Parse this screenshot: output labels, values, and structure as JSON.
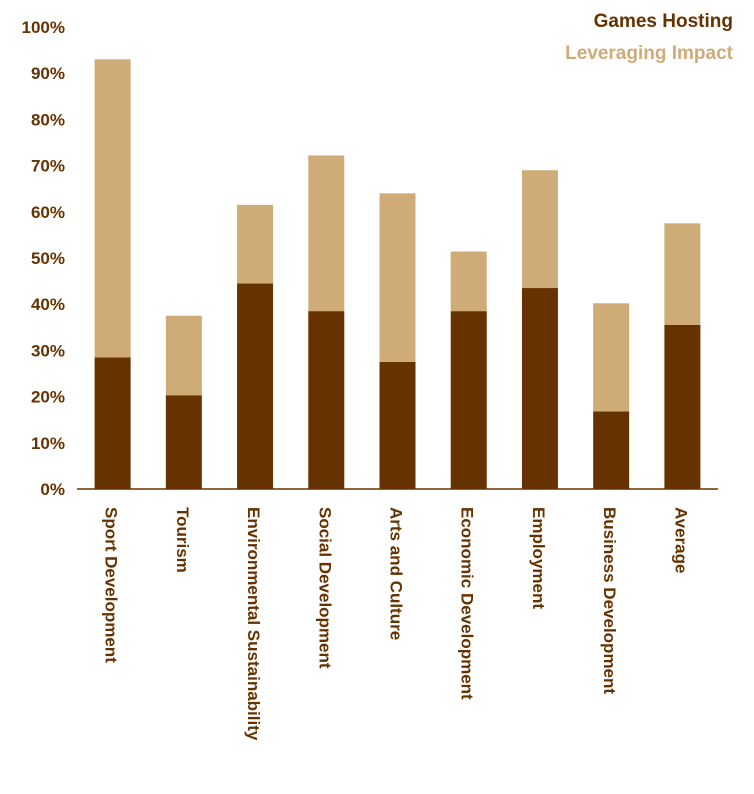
{
  "chart_data": {
    "type": "bar",
    "stacked": true,
    "categories": [
      "Sport Development",
      "Tourism",
      "Environmental Sustainability",
      "Social Development",
      "Arts and Culture",
      "Economic Development",
      "Employment",
      "Business Development",
      "Average"
    ],
    "series": [
      {
        "name": "Games Hosting",
        "color": "#663300",
        "values": [
          28.5,
          20.3,
          44.5,
          38.5,
          27.5,
          38.5,
          43.5,
          16.8,
          35.5
        ]
      },
      {
        "name": "Leveraging Impact",
        "color": "#cfab78",
        "values": [
          64.5,
          17.2,
          17.0,
          33.7,
          36.5,
          12.9,
          25.5,
          23.4,
          22.0
        ]
      }
    ],
    "ylim": [
      0,
      100
    ],
    "yticks": [
      "0%",
      "10%",
      "20%",
      "30%",
      "40%",
      "50%",
      "60%",
      "70%",
      "80%",
      "90%",
      "100%"
    ],
    "legend_position": "top-right",
    "grid": false
  }
}
